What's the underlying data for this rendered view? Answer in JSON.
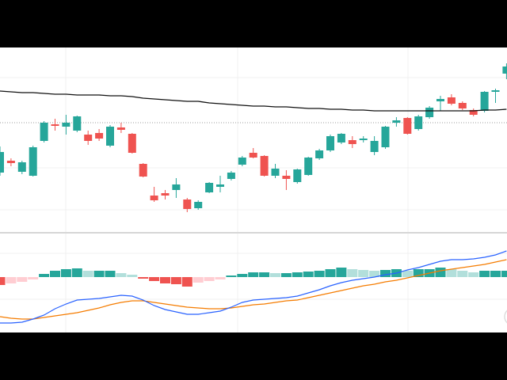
{
  "chart_data": [
    {
      "type": "candlestick",
      "ylim": [
        7,
        240
      ],
      "up_color": "#26a69a",
      "down_color": "#ef5350",
      "ma_color": "#111111",
      "price_line_color": "#9e9e9e",
      "price_line": 145,
      "open": [
        82,
        97,
        83,
        78,
        122,
        143,
        140,
        135,
        130,
        132,
        116,
        139,
        131,
        93,
        53,
        56,
        60,
        48,
        37,
        57,
        64,
        74,
        92,
        107,
        103,
        78,
        78,
        70,
        79,
        100,
        110,
        120,
        123,
        123,
        108,
        114,
        145,
        151,
        137,
        152,
        172,
        177,
        170,
        161,
        160,
        184,
        207
      ],
      "high": [
        115,
        100,
        97,
        116,
        147,
        150,
        155,
        154,
        135,
        137,
        142,
        145,
        132,
        94,
        64,
        60,
        75,
        50,
        47,
        70,
        78,
        84,
        103,
        113,
        104,
        93,
        85,
        87,
        102,
        112,
        130,
        132,
        128,
        128,
        128,
        141,
        152,
        152,
        155,
        166,
        179,
        181,
        172,
        163,
        185,
        188,
        220
      ],
      "low": [
        78,
        90,
        80,
        77,
        120,
        135,
        130,
        133,
        117,
        122,
        114,
        132,
        106,
        76,
        45,
        48,
        50,
        32,
        35,
        56,
        57,
        72,
        90,
        100,
        77,
        75,
        60,
        68,
        78,
        98,
        108,
        118,
        113,
        120,
        104,
        112,
        140,
        130,
        135,
        150,
        160,
        167,
        161,
        153,
        158,
        170,
        200
      ],
      "close": [
        108,
        94,
        95,
        114,
        145,
        141,
        145,
        153,
        122,
        125,
        140,
        136,
        107,
        77,
        47,
        53,
        67,
        36,
        45,
        69,
        67,
        82,
        101,
        101,
        78,
        87,
        74,
        86,
        101,
        110,
        128,
        131,
        118,
        125,
        122,
        140,
        148,
        131,
        153,
        164,
        175,
        169,
        163,
        155,
        184,
        186,
        216
      ],
      "ma": [
        185,
        184,
        183,
        183,
        182,
        181,
        181,
        180,
        180,
        180,
        179,
        179,
        178,
        176,
        175,
        174,
        173,
        172,
        172,
        170,
        169,
        168,
        167,
        166,
        166,
        165,
        165,
        164,
        163,
        163,
        162,
        162,
        161,
        161,
        160,
        160,
        160,
        160,
        160,
        160,
        160,
        160,
        160,
        160,
        161,
        161,
        162
      ]
    },
    {
      "type": "macd",
      "ylim": [
        -70,
        54
      ],
      "macd_color": "#2962ff",
      "signal_color": "#f57c00",
      "hist_colors": {
        "rise_pos": "#26a69a",
        "fall_pos": "#b2dfdb",
        "fall_neg": "#ef5350",
        "rise_neg": "#ffcdd2"
      },
      "histogram": [
        -10,
        -8,
        -6,
        -3,
        4,
        8,
        10,
        11,
        8,
        8,
        8,
        5,
        3,
        -2,
        -5,
        -8,
        -9,
        -12,
        -7,
        -5,
        -3,
        2,
        4,
        6,
        6,
        5,
        5,
        6,
        7,
        8,
        10,
        12,
        10,
        9,
        8,
        9,
        10,
        8,
        10,
        10,
        12,
        10,
        8,
        6,
        8,
        8,
        8
      ],
      "macd": [
        -58,
        -58,
        -57,
        -53,
        -48,
        -40,
        -34,
        -29,
        -28,
        -27,
        -25,
        -23,
        -24,
        -29,
        -36,
        -41,
        -44,
        -47,
        -47,
        -45,
        -43,
        -38,
        -32,
        -29,
        -28,
        -27,
        -26,
        -24,
        -20,
        -16,
        -11,
        -7,
        -4,
        -2,
        0,
        3,
        5,
        9,
        12,
        16,
        20,
        22,
        22,
        23,
        25,
        28,
        33
      ],
      "signal": [
        -50,
        -52,
        -53,
        -53,
        -51,
        -49,
        -47,
        -45,
        -42,
        -39,
        -35,
        -32,
        -30,
        -30,
        -32,
        -34,
        -36,
        -38,
        -39,
        -40,
        -40,
        -39,
        -37,
        -35,
        -34,
        -32,
        -30,
        -29,
        -26,
        -23,
        -20,
        -17,
        -14,
        -11,
        -9,
        -6,
        -4,
        -1,
        2,
        5,
        8,
        10,
        12,
        14,
        16,
        19,
        22
      ]
    }
  ]
}
